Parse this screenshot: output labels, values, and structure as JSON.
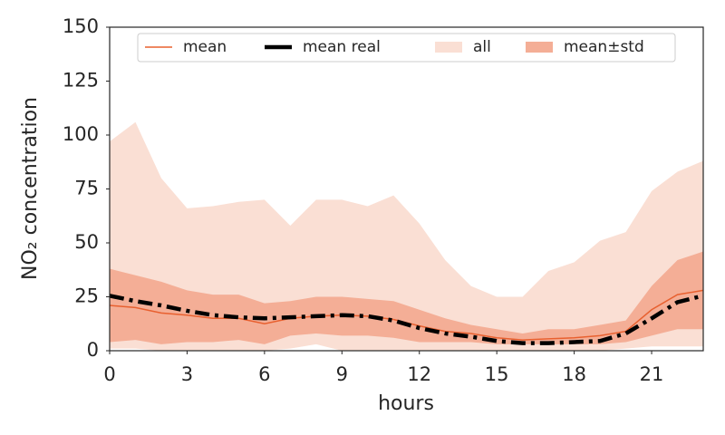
{
  "chart_data": {
    "type": "line",
    "xlabel": "hours",
    "ylabel": "NO₂ concentration",
    "x": [
      0,
      1,
      2,
      3,
      4,
      5,
      6,
      7,
      8,
      9,
      10,
      11,
      12,
      13,
      14,
      15,
      16,
      17,
      18,
      19,
      20,
      21,
      22,
      23
    ],
    "xlim": [
      0,
      23
    ],
    "ylim": [
      0,
      150
    ],
    "xticks": [
      0,
      3,
      6,
      9,
      12,
      15,
      18,
      21
    ],
    "yticks": [
      0,
      25,
      50,
      75,
      100,
      125,
      150
    ],
    "legend_position": "upper center",
    "bands": [
      {
        "name": "all",
        "color": "#fadfd4",
        "lower": [
          1,
          1,
          0,
          0,
          0,
          0,
          0,
          1,
          3,
          0,
          0,
          0,
          0,
          0,
          0,
          0,
          0,
          0,
          0,
          0,
          1,
          2,
          2,
          2
        ],
        "upper": [
          97,
          106,
          80,
          66,
          67,
          69,
          70,
          58,
          70,
          70,
          67,
          72,
          59,
          42,
          30,
          25,
          25,
          37,
          41,
          51,
          55,
          74,
          83,
          88
        ]
      },
      {
        "name": "mean±std",
        "color": "#f4ae96",
        "lower": [
          4,
          5,
          3,
          4,
          4,
          5,
          3,
          7,
          8,
          7,
          7,
          6,
          4,
          4,
          4,
          3,
          3,
          3,
          3,
          3,
          4,
          7,
          10,
          10
        ],
        "upper": [
          38,
          35,
          32,
          28,
          26,
          26,
          22,
          23,
          25,
          25,
          24,
          23,
          19,
          15,
          12,
          10,
          8,
          10,
          10,
          12,
          14,
          30,
          42,
          46
        ]
      }
    ],
    "series": [
      {
        "name": "mean",
        "color": "#e8602f",
        "dashed": false,
        "width": 1.5,
        "values": [
          21,
          20,
          17.5,
          16.5,
          15,
          15,
          12.5,
          15,
          16,
          16.5,
          16,
          14.5,
          11.5,
          9,
          8,
          6,
          5,
          5.5,
          6,
          7,
          9,
          19,
          26,
          28
        ]
      },
      {
        "name": "mean real",
        "color": "#000000",
        "dashed": true,
        "width": 4.5,
        "values": [
          25.5,
          23,
          21,
          18.5,
          16.5,
          15.5,
          15,
          15.5,
          16,
          16.5,
          16,
          14,
          10.5,
          8,
          6.5,
          4.5,
          3.5,
          3.5,
          4,
          4.5,
          8,
          15,
          22.5,
          25.5
        ]
      }
    ]
  }
}
